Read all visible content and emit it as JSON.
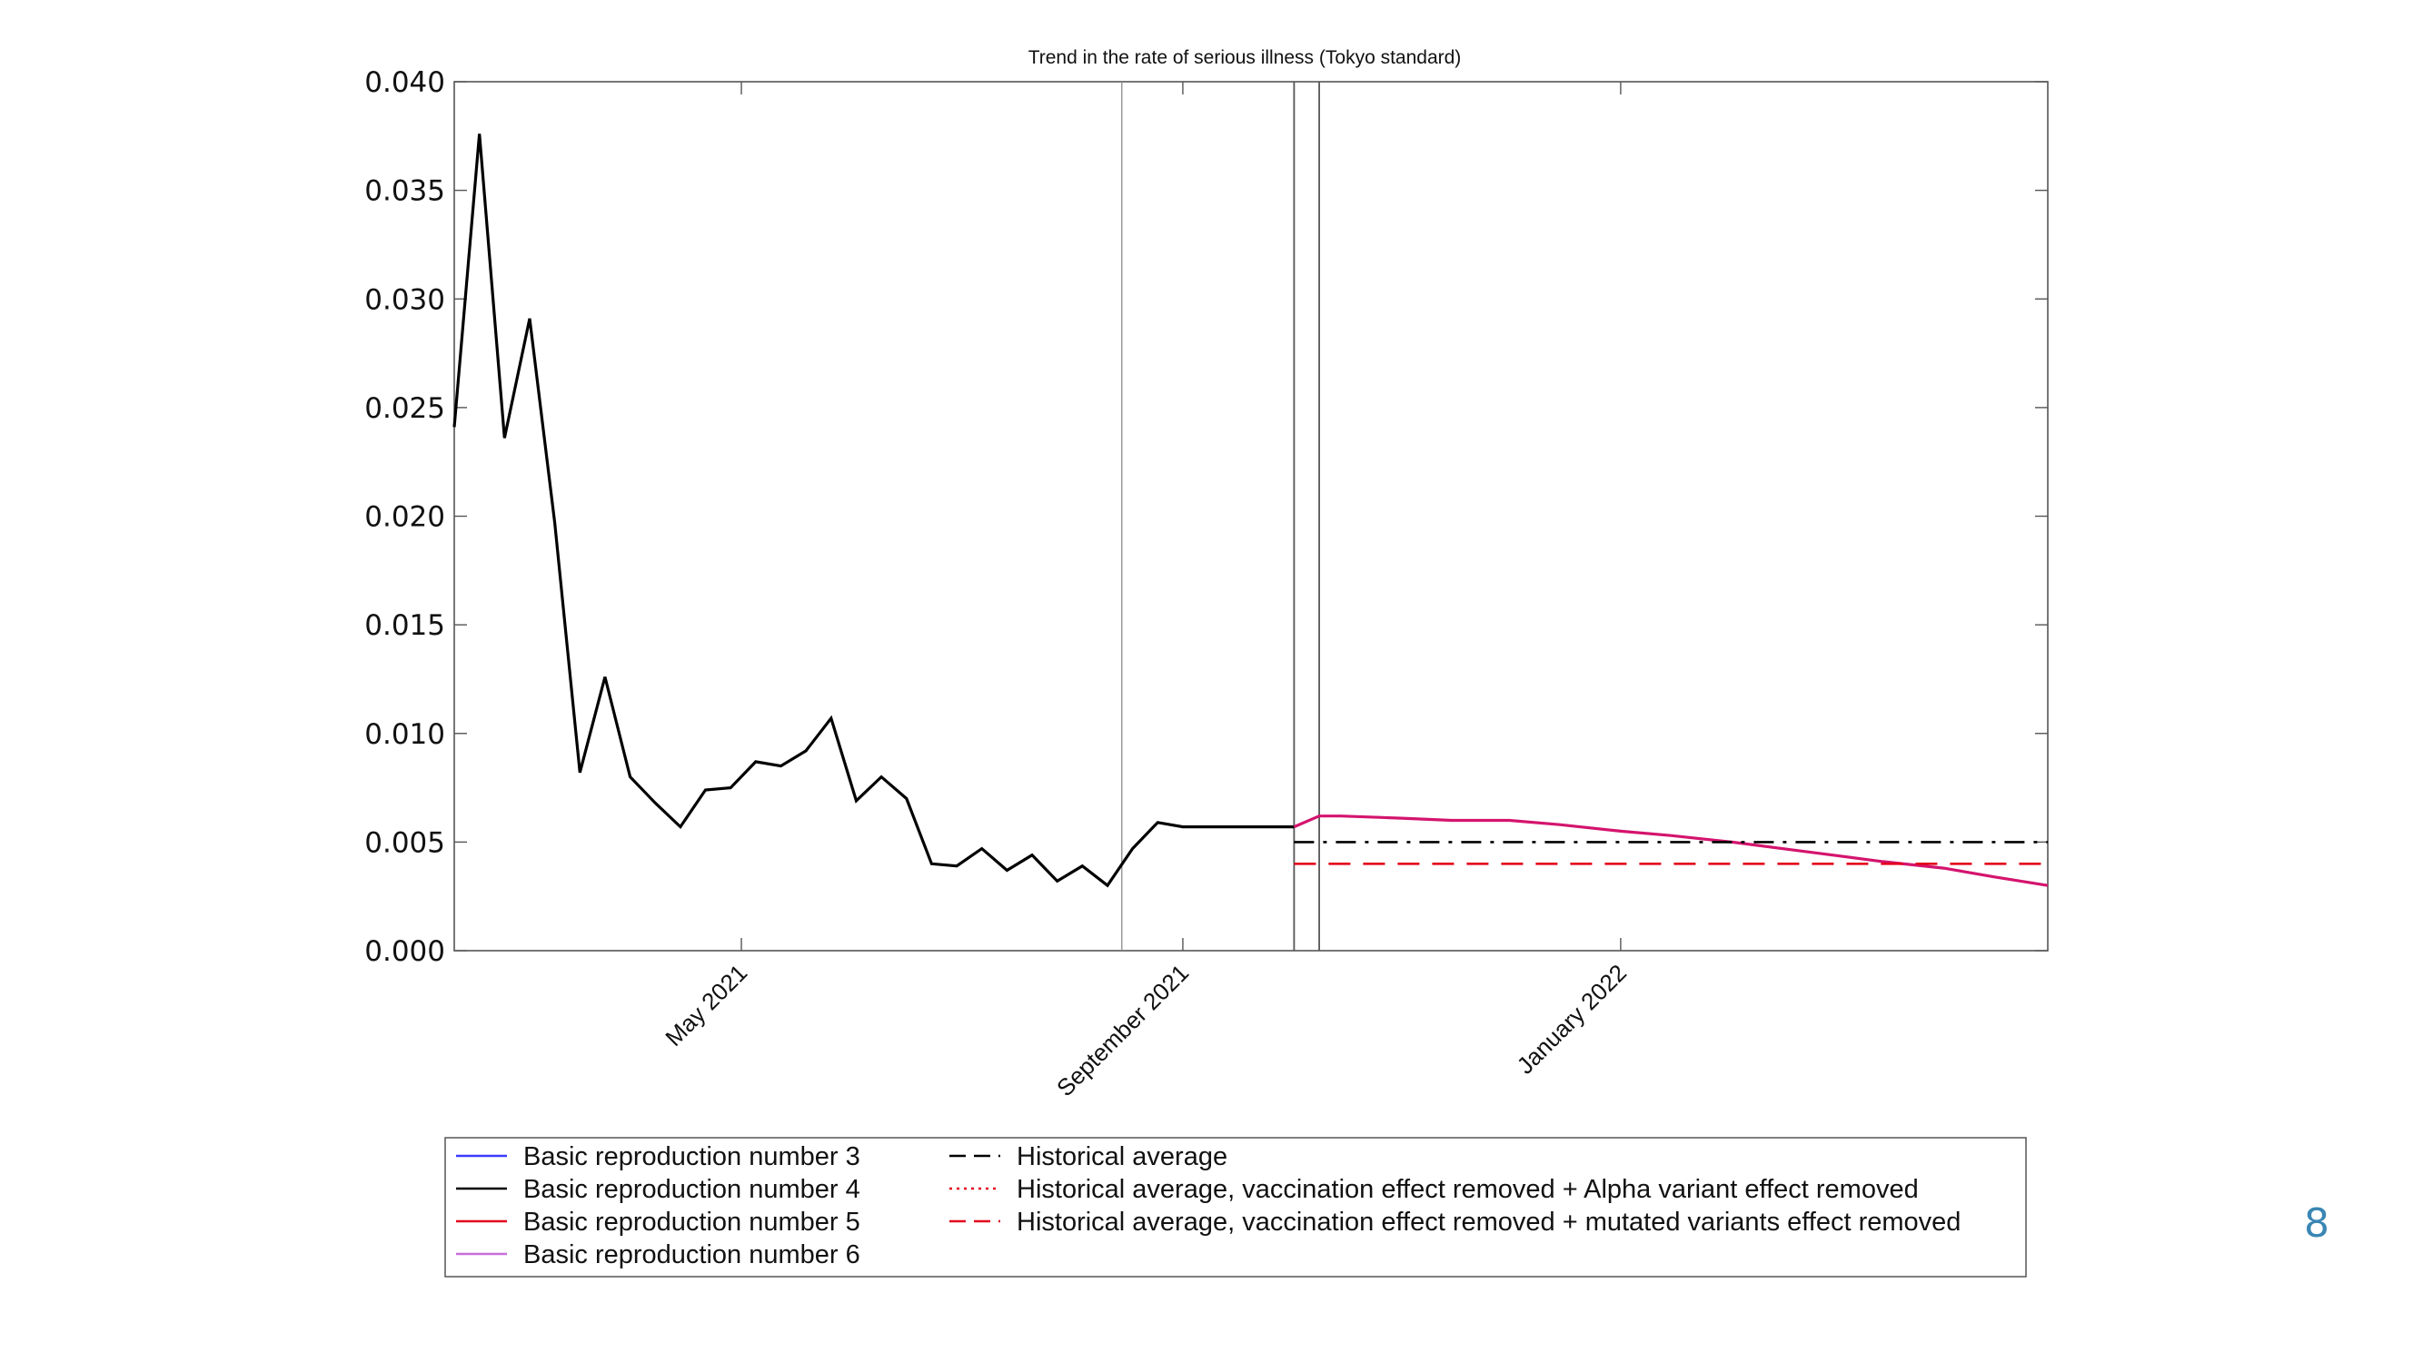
{
  "slide": {
    "page_number": "8"
  },
  "chart_data": {
    "type": "line",
    "title": "Trend in the rate of serious illness (Tokyo standard)",
    "xlabel": "",
    "ylabel": "",
    "ylim": [
      0,
      0.04
    ],
    "yticks": [
      "0.000",
      "0.005",
      "0.010",
      "0.015",
      "0.020",
      "0.025",
      "0.030",
      "0.035",
      "0.040"
    ],
    "xlim": [
      "2021-02-10",
      "2022-04-30"
    ],
    "xticks": [
      {
        "date": "2021-05-01",
        "label": "May 2021"
      },
      {
        "date": "2021-09-01",
        "label": "September 2021"
      },
      {
        "date": "2022-01-01",
        "label": "January 2022"
      }
    ],
    "vertical_lines": [
      "2021-08-15",
      "2021-10-02",
      "2021-10-09"
    ],
    "grid": false,
    "legend_position": "bottom",
    "legend": [
      {
        "label": "Basic reproduction number 3",
        "color": "#3b3bff",
        "style": "solid"
      },
      {
        "label": "Basic reproduction number 4",
        "color": "#000000",
        "style": "solid"
      },
      {
        "label": "Basic reproduction number 5",
        "color": "#e3001b",
        "style": "solid"
      },
      {
        "label": "Basic reproduction number 6",
        "color": "#c86edc",
        "style": "solid"
      },
      {
        "label": "Historical average",
        "color": "#000000",
        "style": "dashed"
      },
      {
        "label": "Historical average, vaccination effect removed + Alpha variant effect removed",
        "color": "#e3001b",
        "style": "dotted"
      },
      {
        "label": "Historical average, vaccination effect removed + mutated variants effect removed",
        "color": "#e3001b",
        "style": "dashed"
      }
    ],
    "series": [
      {
        "name": "Basic reproduction number 4",
        "color": "#000000",
        "style": "solid",
        "x": [
          "2021-02-10",
          "2021-02-17",
          "2021-02-24",
          "2021-03-03",
          "2021-03-10",
          "2021-03-17",
          "2021-03-24",
          "2021-03-31",
          "2021-04-07",
          "2021-04-14",
          "2021-04-21",
          "2021-04-28",
          "2021-05-05",
          "2021-05-12",
          "2021-05-19",
          "2021-05-26",
          "2021-06-02",
          "2021-06-09",
          "2021-06-16",
          "2021-06-23",
          "2021-06-30",
          "2021-07-07",
          "2021-07-14",
          "2021-07-21",
          "2021-07-28",
          "2021-08-04",
          "2021-08-11",
          "2021-08-18",
          "2021-08-25",
          "2021-09-01",
          "2021-09-08",
          "2021-09-15",
          "2021-09-22",
          "2021-09-29",
          "2021-10-02"
        ],
        "y": [
          0.0241,
          0.0376,
          0.0236,
          0.0291,
          0.0197,
          0.0082,
          0.0126,
          0.008,
          0.0068,
          0.0057,
          0.0074,
          0.0075,
          0.0087,
          0.0085,
          0.0092,
          0.0107,
          0.0069,
          0.008,
          0.007,
          0.004,
          0.0039,
          0.0047,
          0.0037,
          0.0044,
          0.0032,
          0.0039,
          0.003,
          0.0047,
          0.0059,
          0.0057,
          0.0057,
          0.0057,
          0.0057,
          0.0057,
          0.0057
        ]
      },
      {
        "name": "Basic reproduction number 6",
        "color": "#d4146e",
        "style": "solid",
        "x": [
          "2021-10-02",
          "2021-10-09",
          "2021-10-15",
          "2021-11-01",
          "2021-11-15",
          "2021-12-01",
          "2021-12-15",
          "2022-01-01",
          "2022-01-15",
          "2022-02-01",
          "2022-02-15",
          "2022-03-01",
          "2022-03-15",
          "2022-04-01",
          "2022-04-15",
          "2022-04-30"
        ],
        "y": [
          0.0057,
          0.0062,
          0.0062,
          0.0061,
          0.006,
          0.006,
          0.0058,
          0.0055,
          0.0053,
          0.005,
          0.0047,
          0.0044,
          0.0041,
          0.0038,
          0.0034,
          0.003
        ]
      },
      {
        "name": "Historical average",
        "color": "#000000",
        "style": "dashdot",
        "x": [
          "2021-10-02",
          "2022-04-30"
        ],
        "y": [
          0.005,
          0.005
        ]
      },
      {
        "name": "Historical average, vaccination effect removed + mutated variants effect removed",
        "color": "#e3001b",
        "style": "dashed",
        "x": [
          "2021-10-02",
          "2022-04-30"
        ],
        "y": [
          0.004,
          0.004
        ]
      }
    ]
  }
}
